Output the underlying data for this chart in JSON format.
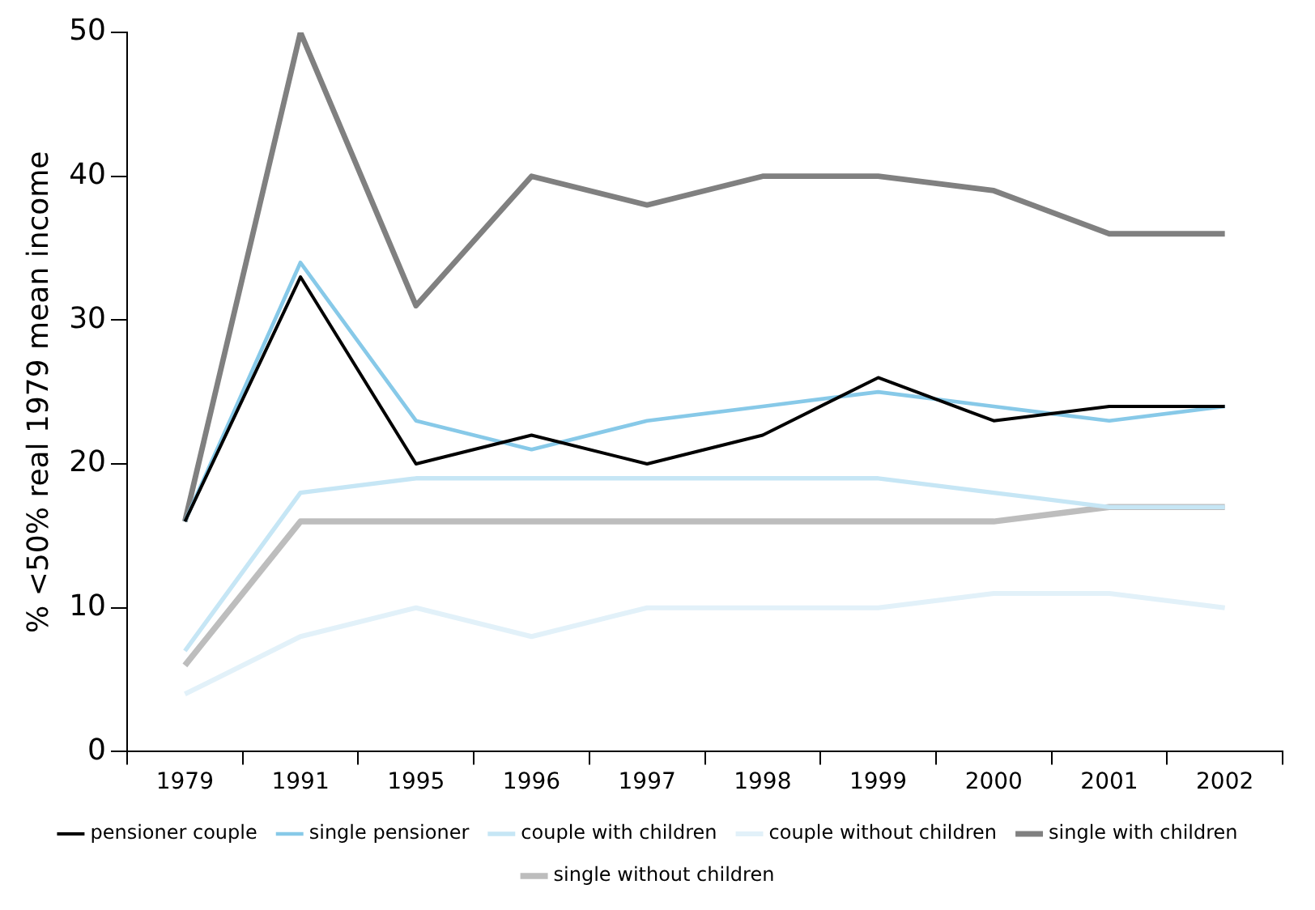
{
  "chart_data": {
    "type": "line",
    "ylabel": "% <50% real 1979 mean income",
    "categories": [
      "1979",
      "1991",
      "1995",
      "1996",
      "1997",
      "1998",
      "1999",
      "2000",
      "2001",
      "2002"
    ],
    "ylim": [
      0,
      50
    ],
    "yticks": [
      0,
      10,
      20,
      30,
      40,
      50
    ],
    "grid": false,
    "legend": "bottom",
    "marker": "none",
    "line_style": "solid",
    "series": [
      {
        "name": "pensioner couple",
        "color": "#000000",
        "values": [
          16,
          33,
          20,
          22,
          20,
          22,
          26,
          23,
          24,
          24
        ]
      },
      {
        "name": "single pensioner",
        "color": "#87c9e8",
        "values": [
          16,
          34,
          23,
          21,
          23,
          24,
          25,
          24,
          23,
          24
        ]
      },
      {
        "name": "couple with children",
        "color": "#c6e6f5",
        "values": [
          7,
          18,
          19,
          19,
          19,
          19,
          19,
          18,
          17,
          17
        ]
      },
      {
        "name": "couple without children",
        "color": "#e2f1f9",
        "values": [
          4,
          8,
          10,
          8,
          10,
          10,
          10,
          11,
          11,
          10
        ]
      },
      {
        "name": "single with children",
        "color": "#808080",
        "values": [
          16,
          50,
          31,
          40,
          38,
          40,
          40,
          39,
          36,
          36
        ]
      },
      {
        "name": "single without children",
        "color": "#bdbdbd",
        "values": [
          6,
          16,
          16,
          16,
          16,
          16,
          16,
          16,
          17,
          17
        ]
      }
    ]
  }
}
